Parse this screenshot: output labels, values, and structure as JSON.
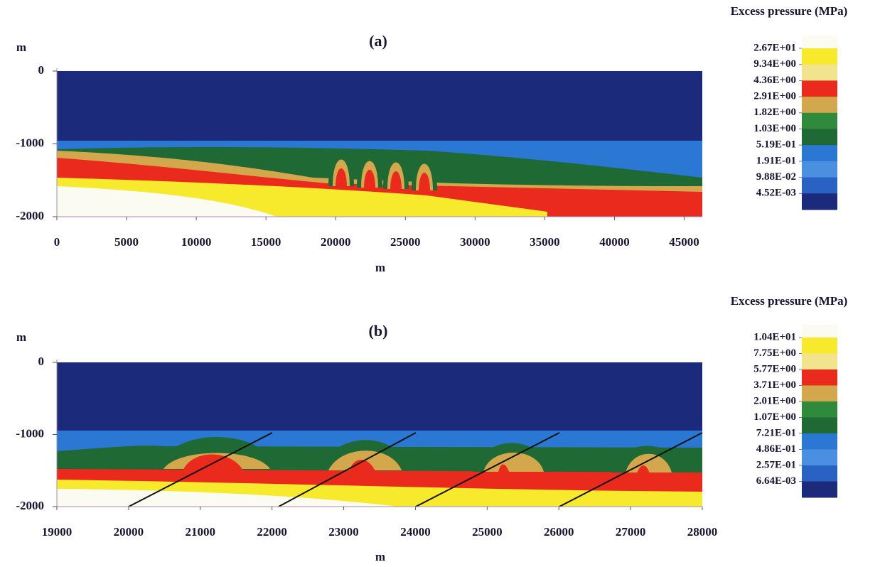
{
  "chart_data": [
    {
      "type": "contour",
      "title": "(a)",
      "xlabel": "m",
      "ylabel": "m",
      "xlim": [
        0,
        46300
      ],
      "ylim": [
        -2000,
        0
      ],
      "xticks": [
        0,
        5000,
        10000,
        15000,
        20000,
        25000,
        30000,
        35000,
        40000,
        45000
      ],
      "yticks": [
        0,
        -1000,
        -2000
      ],
      "colorbar": {
        "title": "Excess pressure (MPa)",
        "colors": [
          "#fbfbf2",
          "#f7ea2c",
          "#f1e48c",
          "#ea2a1c",
          "#d3a84c",
          "#2f8a3c",
          "#1f6a34",
          "#2a78d4",
          "#4a8fe0",
          "#2a62c4",
          "#1c2a7c"
        ],
        "ticks": [
          {
            "value": 26.7,
            "label": "2.67E+01"
          },
          {
            "value": 9.34,
            "label": "9.34E+00"
          },
          {
            "value": 4.36,
            "label": "4.36E+00"
          },
          {
            "value": 2.91,
            "label": "2.91E+00"
          },
          {
            "value": 1.82,
            "label": "1.82E+00"
          },
          {
            "value": 1.03,
            "label": "1.03E+00"
          },
          {
            "value": 0.519,
            "label": "5.19E-01"
          },
          {
            "value": 0.191,
            "label": "1.91E-01"
          },
          {
            "value": 0.0988,
            "label": "9.88E-02"
          },
          {
            "value": 0.00452,
            "label": "4.52E-03"
          }
        ]
      }
    },
    {
      "type": "contour",
      "title": "(b)",
      "xlabel": "m",
      "ylabel": "m",
      "xlim": [
        19000,
        28000
      ],
      "ylim": [
        -2000,
        0
      ],
      "xticks": [
        19000,
        20000,
        21000,
        22000,
        23000,
        24000,
        25000,
        26000,
        27000,
        28000
      ],
      "yticks": [
        0,
        -1000,
        -2000
      ],
      "colorbar": {
        "title": "Excess pressure (MPa)",
        "colors": [
          "#fbfbf2",
          "#f7ea2c",
          "#f1e48c",
          "#ea2a1c",
          "#d3a84c",
          "#2f8a3c",
          "#1f6a34",
          "#2a78d4",
          "#4a8fe0",
          "#2a62c4",
          "#1c2a7c"
        ],
        "ticks": [
          {
            "value": 10.4,
            "label": "1.04E+01"
          },
          {
            "value": 7.75,
            "label": "7.75E+00"
          },
          {
            "value": 5.77,
            "label": "5.77E+00"
          },
          {
            "value": 3.71,
            "label": "3.71E+00"
          },
          {
            "value": 2.01,
            "label": "2.01E+00"
          },
          {
            "value": 1.07,
            "label": "1.07E+00"
          },
          {
            "value": 0.721,
            "label": "7.21E-01"
          },
          {
            "value": 0.486,
            "label": "4.86E-01"
          },
          {
            "value": 0.257,
            "label": "2.57E-01"
          },
          {
            "value": 0.00664,
            "label": "6.64E-03"
          }
        ]
      }
    }
  ]
}
